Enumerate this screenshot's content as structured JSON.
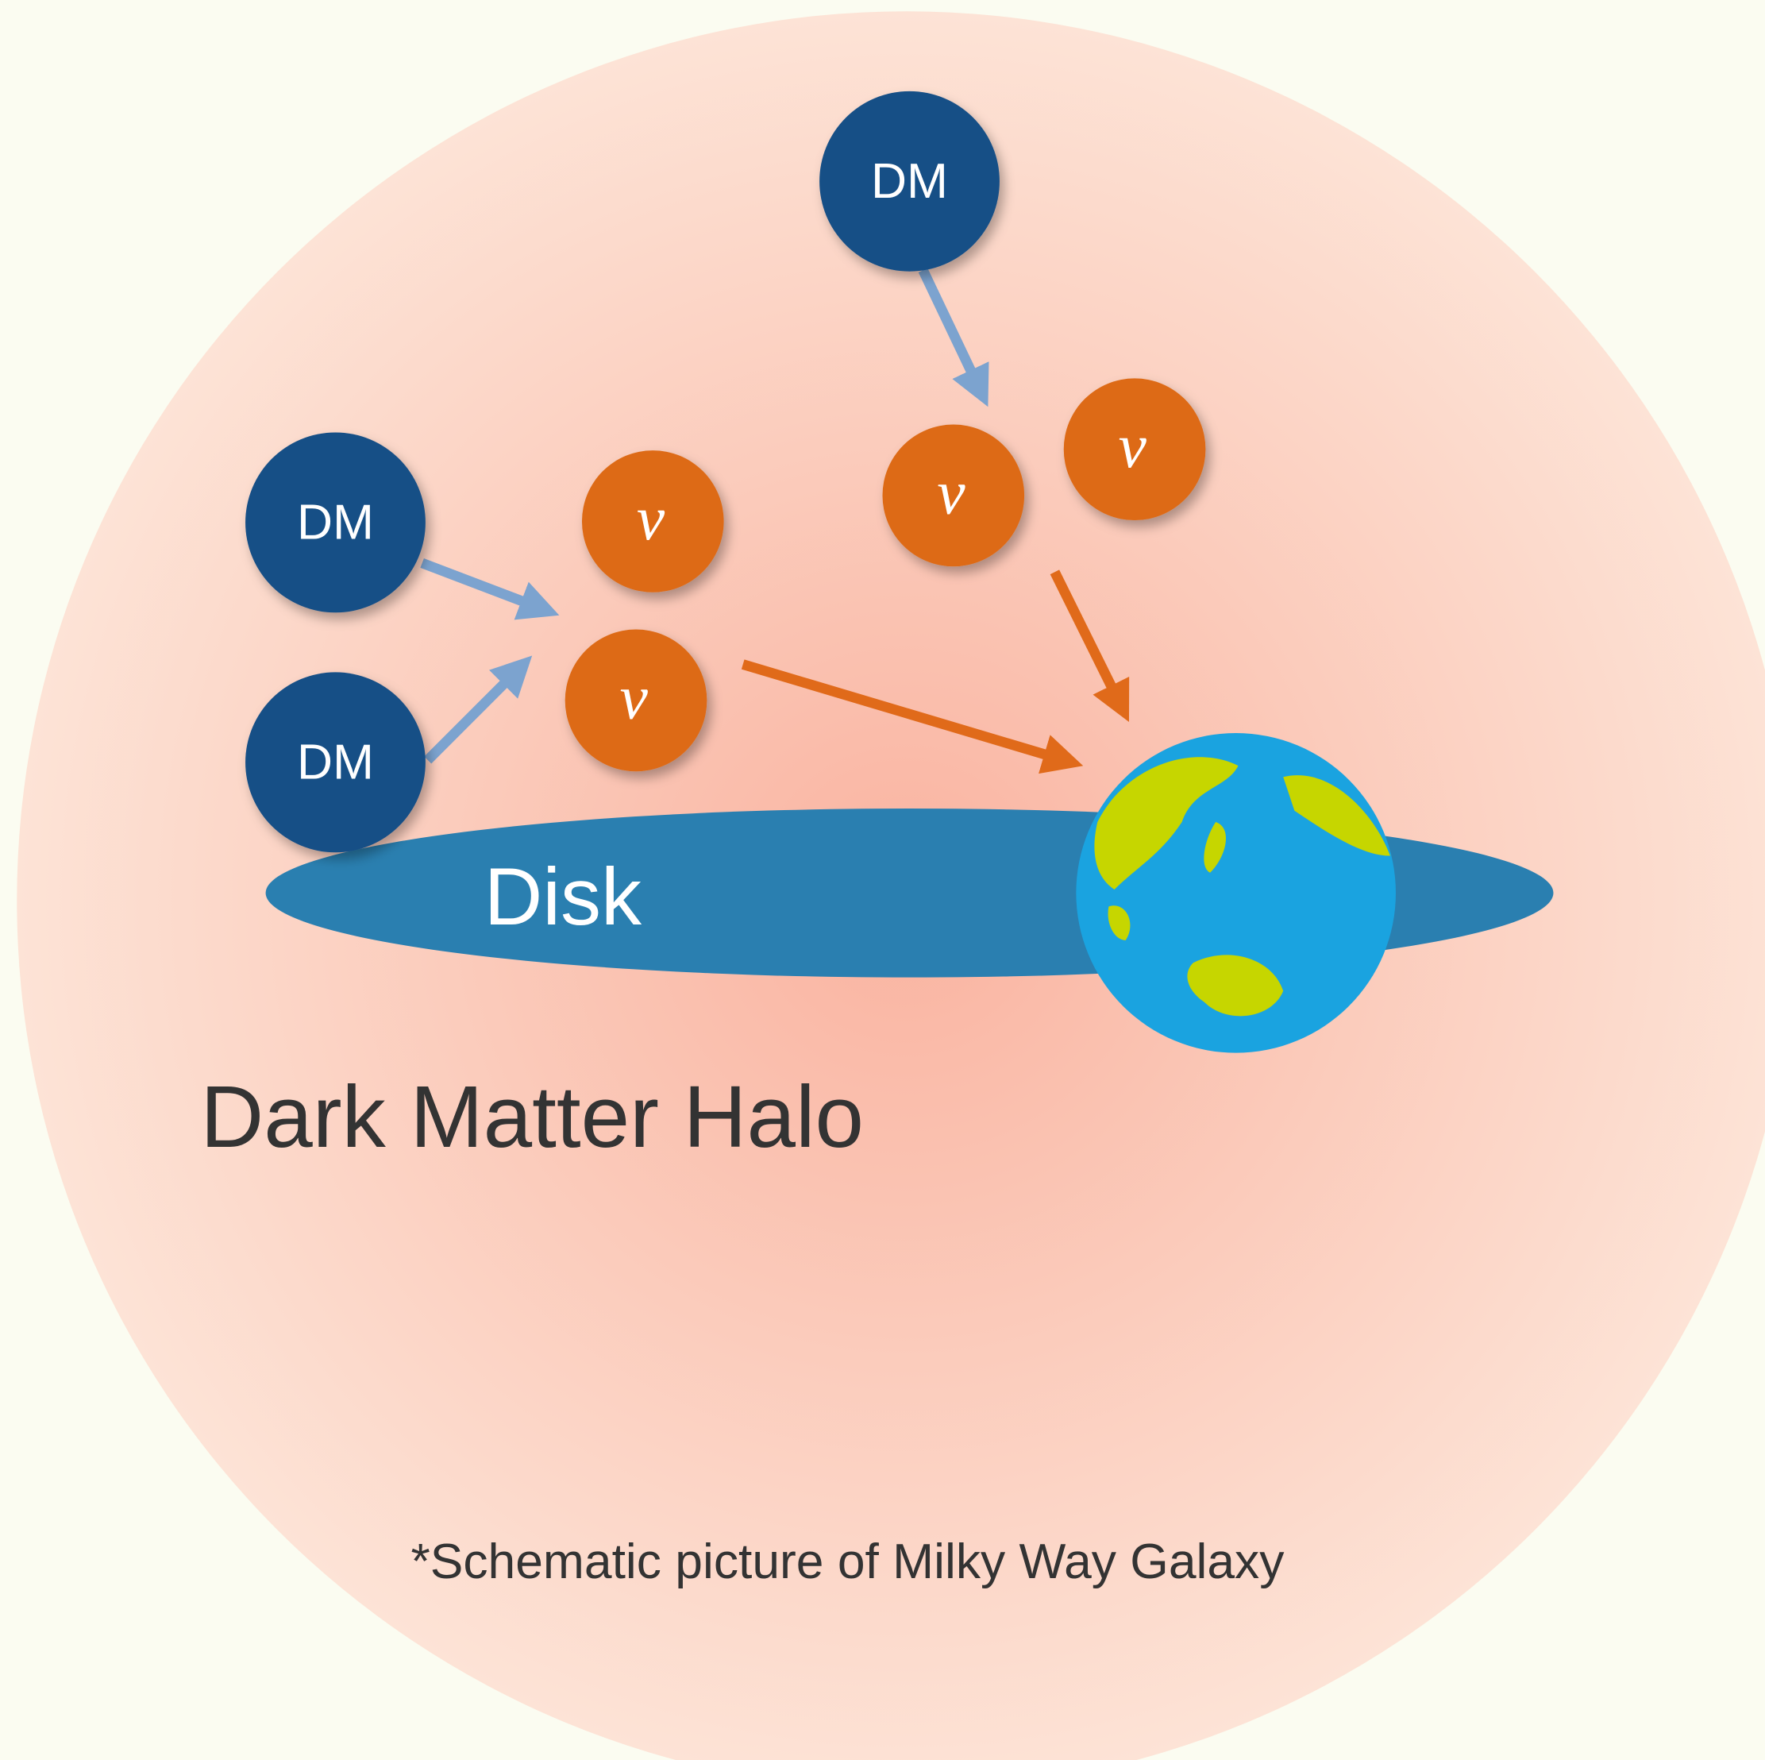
{
  "nodes": [
    {
      "label": "DM"
    },
    {
      "label": "DM"
    },
    {
      "label": "DM"
    },
    {
      "label": "ν"
    },
    {
      "label": "ν"
    },
    {
      "label": "ν"
    },
    {
      "label": "ν"
    }
  ],
  "disk": {
    "label": "Disk"
  },
  "halo": {
    "label": "Dark Matter Halo"
  },
  "footnote": "*Schematic picture of Milky Way Galaxy"
}
